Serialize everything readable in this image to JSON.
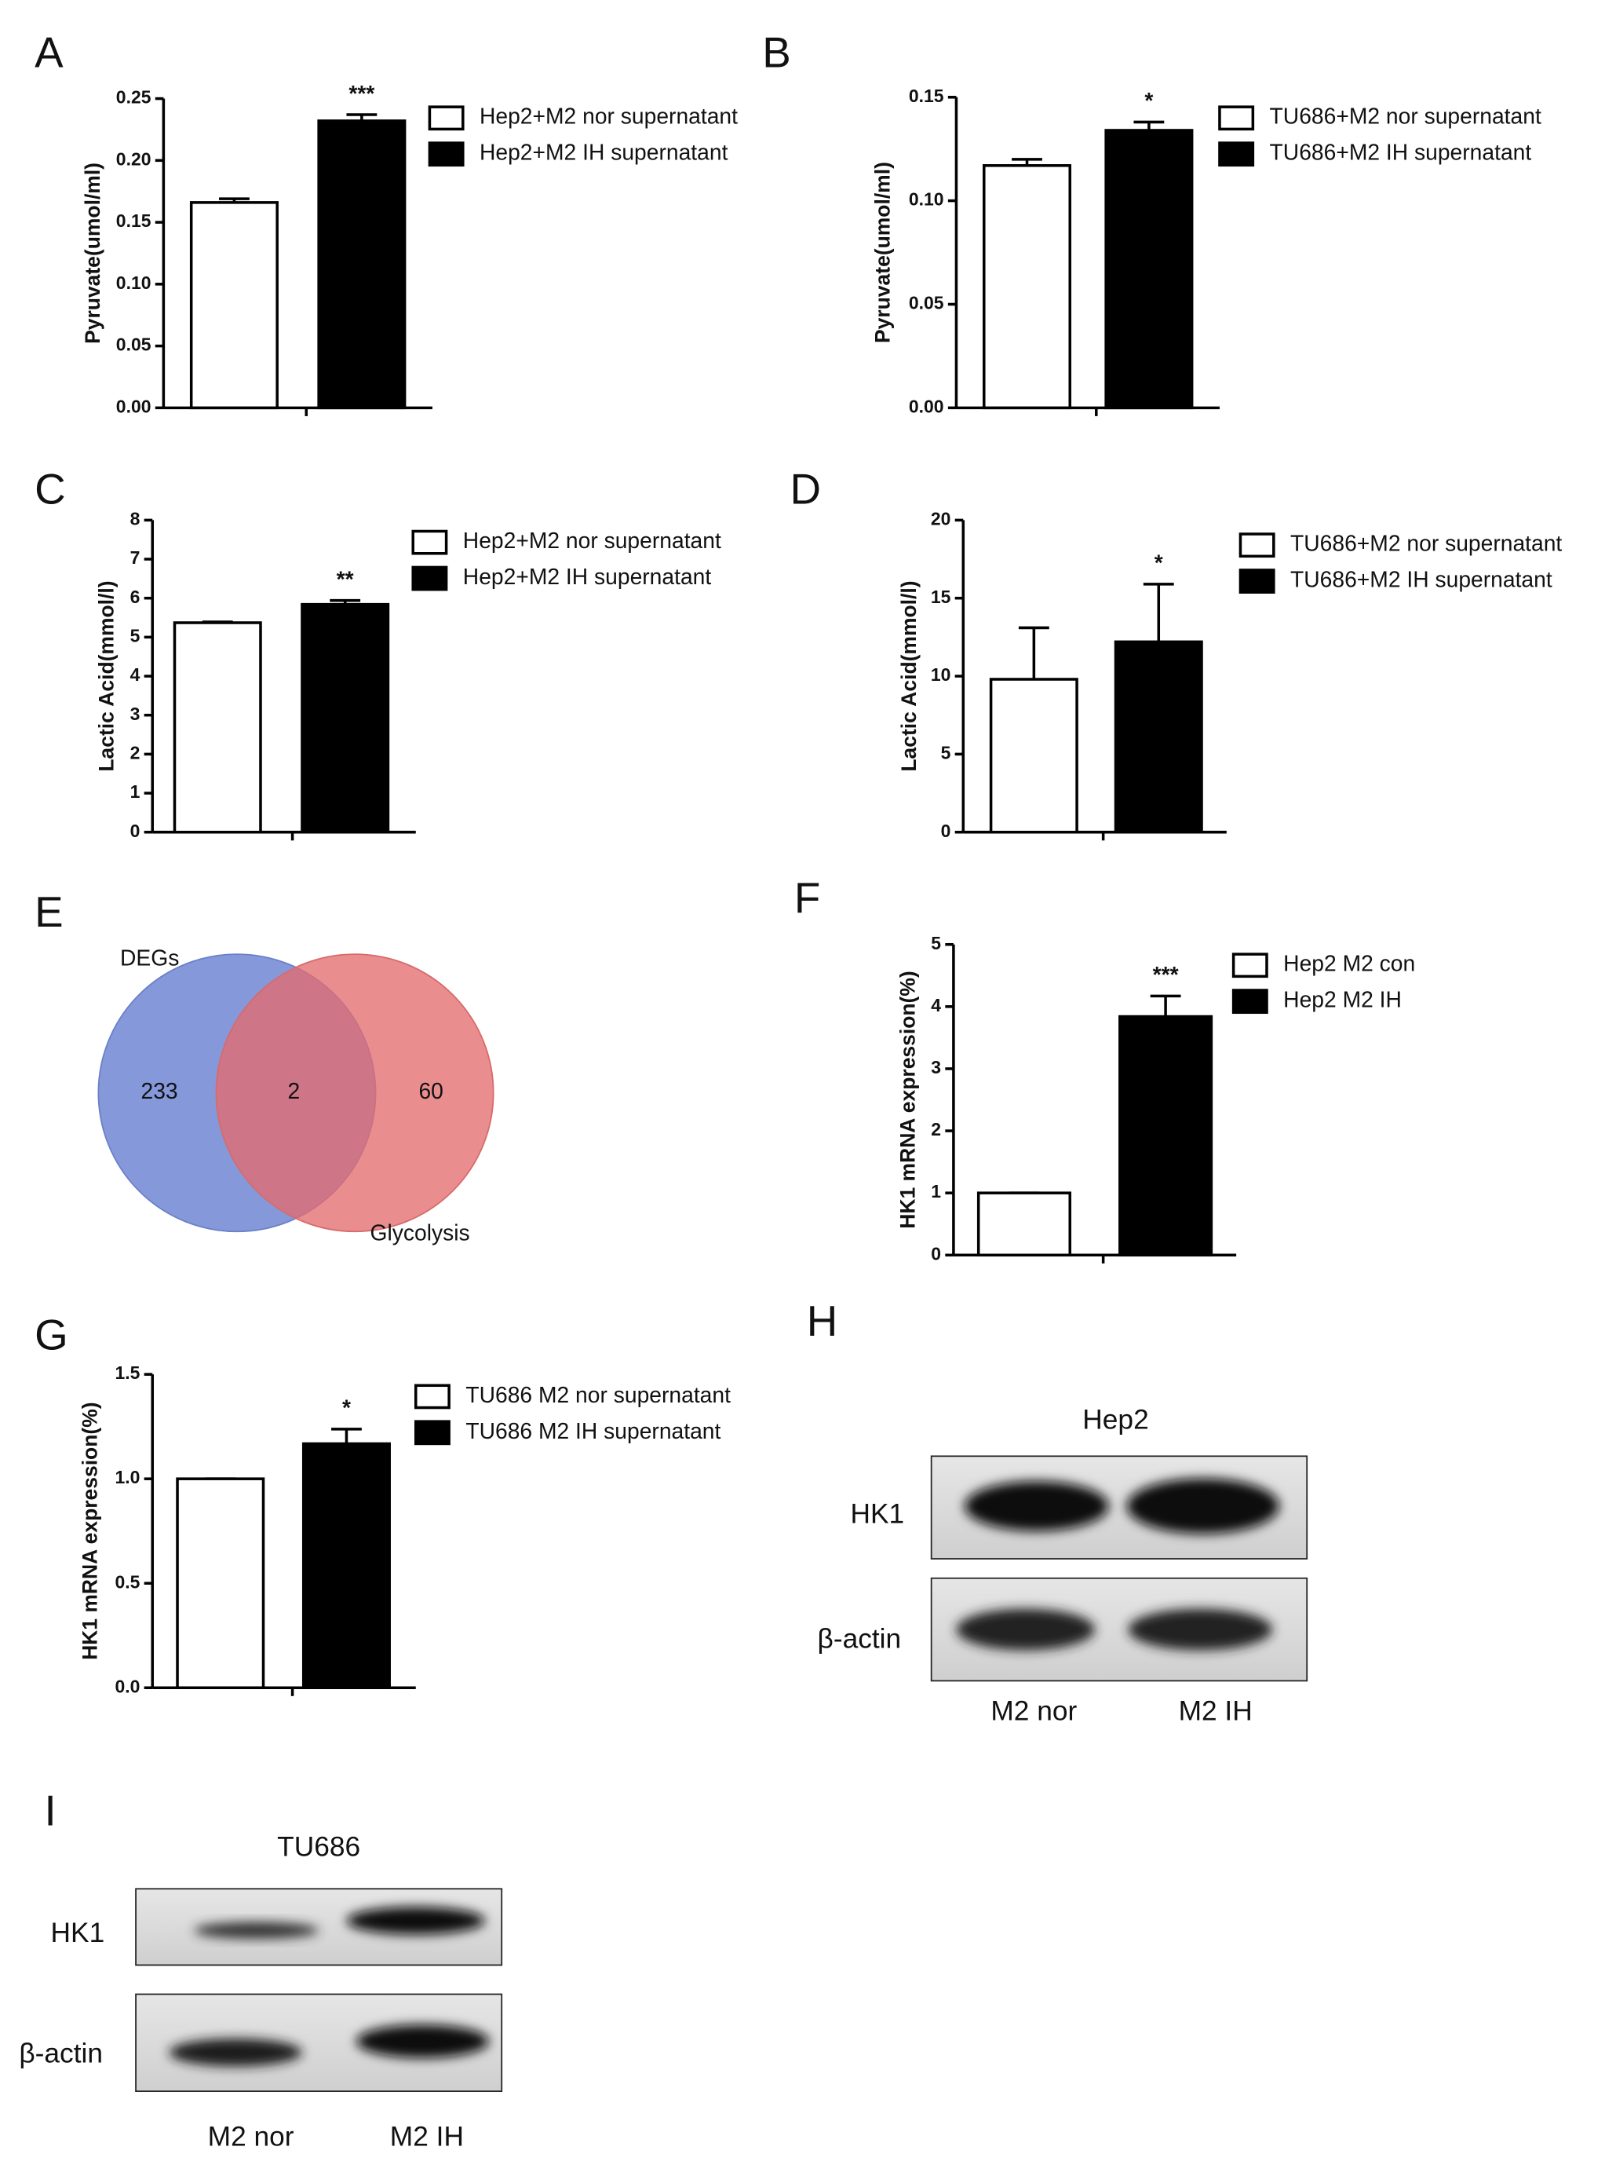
{
  "chart_data": [
    {
      "type": "bar",
      "panel": "A",
      "ylabel": "Pyruvate(umol/ml)",
      "annotation": "***",
      "ylim": [
        0,
        0.25
      ],
      "yticks": [
        {
          "value": 0,
          "label": "0.00"
        },
        {
          "value": 0.05,
          "label": "0.05"
        },
        {
          "value": 0.1,
          "label": "0.10"
        },
        {
          "value": 0.15,
          "label": "0.15"
        },
        {
          "value": 0.2,
          "label": "0.20"
        },
        {
          "value": 0.25,
          "label": "0.25"
        }
      ],
      "series": [
        {
          "name": "Hep2+M2 nor supernatant",
          "color": "#ffffff",
          "values": [
            0.166
          ],
          "errors": [
            0.003
          ]
        },
        {
          "name": "Hep2+M2 IH supernatant",
          "color": "#000000",
          "values": [
            0.232
          ],
          "errors": [
            0.005
          ]
        }
      ]
    },
    {
      "type": "bar",
      "panel": "B",
      "ylabel": "Pyruvate(umol/ml)",
      "annotation": "*",
      "ylim": [
        0,
        0.15
      ],
      "yticks": [
        {
          "value": 0,
          "label": "0.00"
        },
        {
          "value": 0.05,
          "label": "0.05"
        },
        {
          "value": 0.1,
          "label": "0.10"
        },
        {
          "value": 0.15,
          "label": "0.15"
        }
      ],
      "series": [
        {
          "name": "TU686+M2 nor supernatant",
          "color": "#ffffff",
          "values": [
            0.117
          ],
          "errors": [
            0.003
          ]
        },
        {
          "name": "TU686+M2 IH supernatant",
          "color": "#000000",
          "values": [
            0.134
          ],
          "errors": [
            0.004
          ]
        }
      ]
    },
    {
      "type": "bar",
      "panel": "C",
      "ylabel": "Lactic Acid(mmol/l)",
      "annotation": "**",
      "ylim": [
        0,
        8
      ],
      "yticks": [
        0,
        1,
        2,
        3,
        4,
        5,
        6,
        7,
        8
      ],
      "series": [
        {
          "name": "Hep2+M2 nor supernatant",
          "color": "#ffffff",
          "values": [
            5.37
          ],
          "errors": [
            0.02
          ]
        },
        {
          "name": "Hep2+M2 IH supernatant",
          "color": "#000000",
          "values": [
            5.84
          ],
          "errors": [
            0.1
          ]
        }
      ]
    },
    {
      "type": "bar",
      "panel": "D",
      "ylabel": "Lactic Acid(mmol/l)",
      "annotation": "*",
      "ylim": [
        0,
        20
      ],
      "yticks": [
        0,
        5,
        10,
        15,
        20
      ],
      "series": [
        {
          "name": "TU686+M2 nor supernatant",
          "color": "#ffffff",
          "values": [
            9.8
          ],
          "errors": [
            3.3
          ]
        },
        {
          "name": "TU686+M2 IH supernatant",
          "color": "#000000",
          "values": [
            12.2
          ],
          "errors": [
            3.7
          ]
        }
      ]
    },
    {
      "type": "bar",
      "panel": "F",
      "ylabel": "HK1 mRNA expression(%)",
      "annotation": "***",
      "ylim": [
        0,
        5
      ],
      "yticks": [
        0,
        1,
        2,
        3,
        4,
        5
      ],
      "series": [
        {
          "name": "Hep2 M2 con",
          "color": "#ffffff",
          "values": [
            1
          ],
          "errors": [
            0
          ]
        },
        {
          "name": "Hep2 M2 IH",
          "color": "#000000",
          "values": [
            3.84
          ],
          "errors": [
            0.33
          ]
        }
      ]
    },
    {
      "type": "bar",
      "panel": "G",
      "ylabel": "HK1 mRNA expression(%)",
      "annotation": "*",
      "ylim": [
        0,
        1.5
      ],
      "yticks": [
        {
          "value": 0,
          "label": "0.0"
        },
        {
          "value": 0.5,
          "label": "0.5"
        },
        {
          "value": 1,
          "label": "1.0"
        },
        {
          "value": 1.5,
          "label": "1.5"
        }
      ],
      "series": [
        {
          "name": "TU686 M2 nor supernatant",
          "color": "#ffffff",
          "values": [
            1
          ],
          "errors": [
            0
          ]
        },
        {
          "name": "TU686 M2 IH supernatant",
          "color": "#000000",
          "values": [
            1.168
          ],
          "errors": [
            0.07
          ]
        }
      ]
    }
  ],
  "venn": {
    "panel": "E",
    "sets": [
      "DEGs",
      "Glycolysis"
    ],
    "counts": [
      "233",
      "2",
      "60"
    ]
  },
  "blots": [
    {
      "panel": "H",
      "title": "Hep2",
      "rows": [
        "HK1",
        "β-actin"
      ],
      "lanes": [
        "M2 nor",
        "M2 IH"
      ]
    },
    {
      "panel": "I",
      "title": "TU686",
      "rows": [
        "HK1",
        "β-actin"
      ],
      "lanes": [
        "M2 nor",
        "M2 IH"
      ]
    }
  ]
}
